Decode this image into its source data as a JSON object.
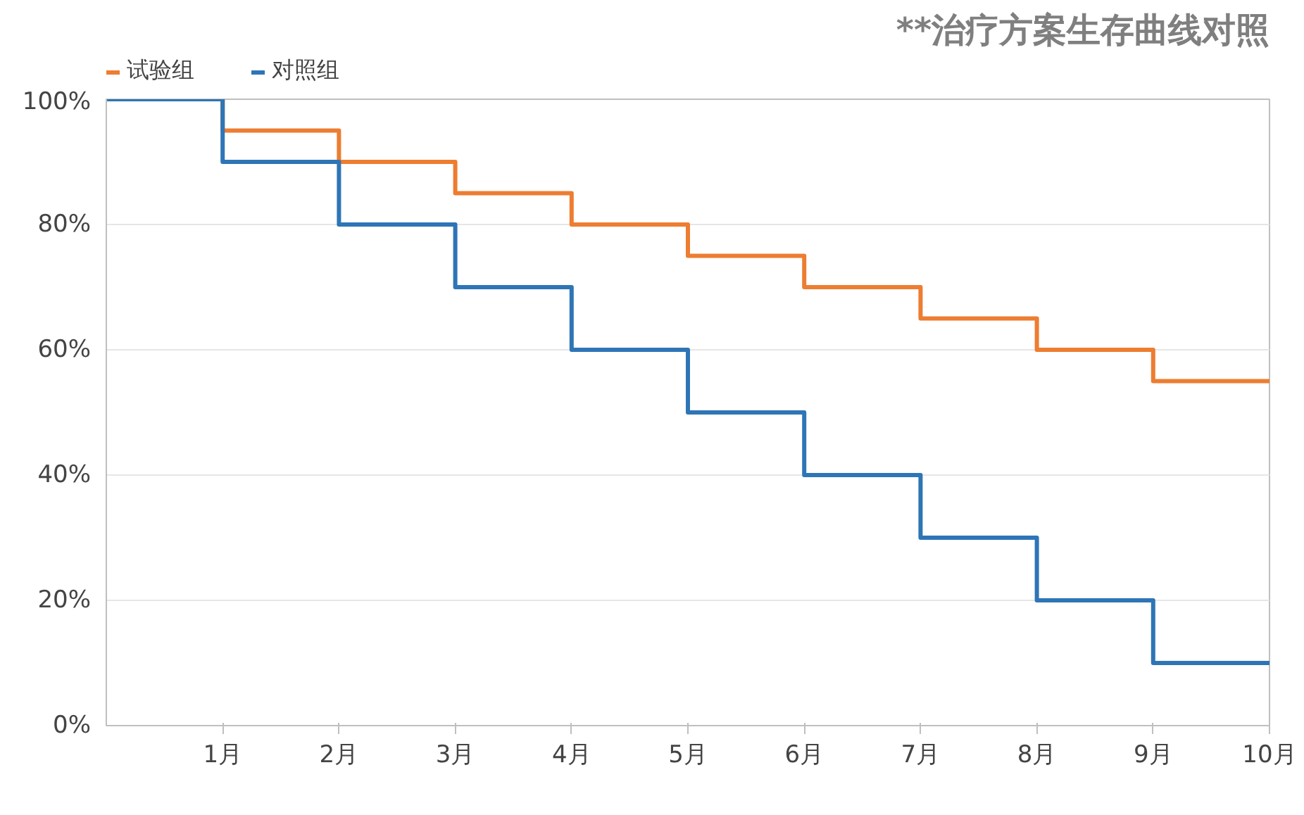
{
  "chart_data": {
    "type": "step",
    "title": "**治疗方案生存曲线对照",
    "x": [
      0,
      1,
      2,
      3,
      4,
      5,
      6,
      7,
      8,
      9,
      10
    ],
    "xlim": [
      0,
      10
    ],
    "xticks": [
      {
        "value": 1,
        "label": "1月"
      },
      {
        "value": 2,
        "label": "2月"
      },
      {
        "value": 3,
        "label": "3月"
      },
      {
        "value": 4,
        "label": "4月"
      },
      {
        "value": 5,
        "label": "5月"
      },
      {
        "value": 6,
        "label": "6月"
      },
      {
        "value": 7,
        "label": "7月"
      },
      {
        "value": 8,
        "label": "8月"
      },
      {
        "value": 9,
        "label": "9月"
      },
      {
        "value": 10,
        "label": "10月"
      }
    ],
    "ylim": [
      0,
      100
    ],
    "yticks": [
      {
        "value": 0,
        "label": "0%"
      },
      {
        "value": 20,
        "label": "20%"
      },
      {
        "value": 40,
        "label": "40%"
      },
      {
        "value": 60,
        "label": "60%"
      },
      {
        "value": 80,
        "label": "80%"
      },
      {
        "value": 100,
        "label": "100%"
      }
    ],
    "series": [
      {
        "name": "试验组",
        "color": "#ed7d31",
        "values": [
          100,
          95,
          90,
          85,
          80,
          75,
          70,
          65,
          60,
          55,
          55
        ]
      },
      {
        "name": "对照组",
        "color": "#2e75b6",
        "values": [
          100,
          90,
          80,
          70,
          60,
          50,
          40,
          30,
          20,
          10,
          10
        ]
      }
    ],
    "grid": "y",
    "legend": "top left"
  }
}
